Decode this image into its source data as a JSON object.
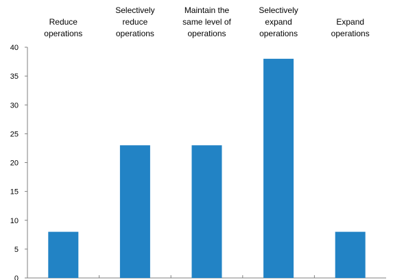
{
  "chart_data": {
    "type": "bar",
    "categories": [
      [
        "Reduce",
        "operations"
      ],
      [
        "Selectively",
        "reduce",
        "operations"
      ],
      [
        "Maintain the",
        "same level of",
        "operations"
      ],
      [
        "Selectively",
        "expand",
        "operations"
      ],
      [
        "Expand",
        "operations"
      ]
    ],
    "values": [
      8,
      23,
      23,
      38,
      8
    ],
    "ylim": [
      0,
      40
    ],
    "yticks": [
      0,
      5,
      10,
      15,
      20,
      25,
      30,
      35,
      40
    ],
    "bar_color": "#2283C5",
    "grid": false,
    "legend": "none"
  }
}
